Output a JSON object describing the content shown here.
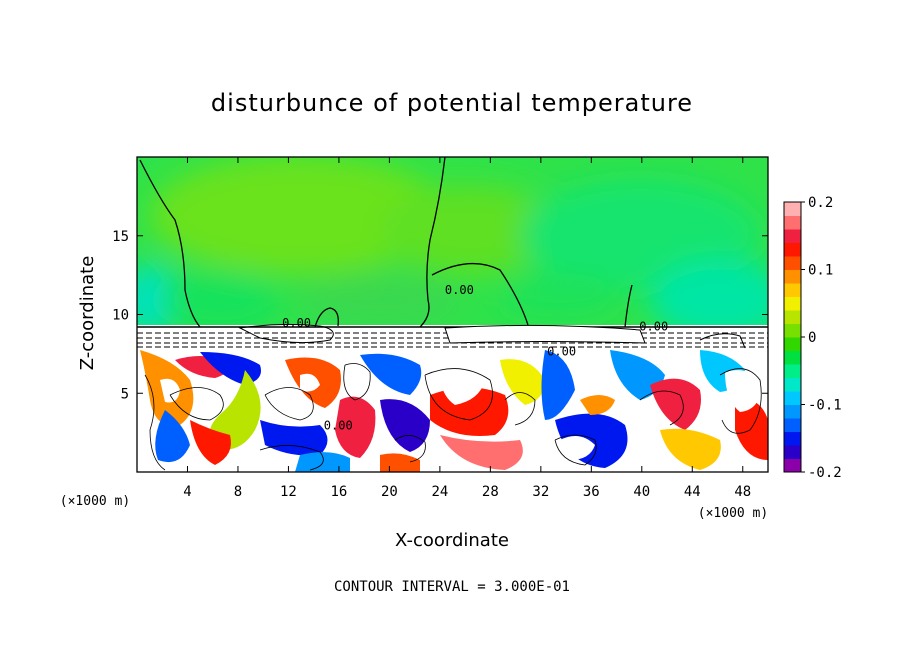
{
  "chart_data": {
    "type": "heatmap",
    "title": "disturbunce of potential temperature",
    "xlabel": "X-coordinate",
    "ylabel": "Z-coordinate",
    "x_unit_label": "(×1000 m)",
    "y_unit_label": "(×1000 m)",
    "xlim": [
      0,
      50
    ],
    "ylim": [
      0,
      20
    ],
    "x_ticks": [
      4,
      8,
      12,
      16,
      20,
      24,
      28,
      32,
      36,
      40,
      44,
      48
    ],
    "y_ticks": [
      5,
      10,
      15
    ],
    "contour_interval_text": "CONTOUR INTERVAL = 3.000E-01",
    "contour_labels": [
      {
        "text": "0.00",
        "x": 11.5,
        "z": 9.2
      },
      {
        "text": "0.00",
        "x": 24.4,
        "z": 11.3
      },
      {
        "text": "0.00",
        "x": 39.8,
        "z": 9.0
      },
      {
        "text": "0.00",
        "x": 32.5,
        "z": 7.4
      },
      {
        "text": "0.00",
        "x": 14.8,
        "z": 2.7
      }
    ],
    "colorbar": {
      "min": -0.2,
      "max": 0.2,
      "tick_values": [
        0.2,
        0.1,
        0,
        -0.1,
        -0.2
      ],
      "tick_labels": [
        "0.2",
        "0.1",
        "0",
        "-0.1",
        "-0.2"
      ],
      "levels": [
        {
          "color": "#8b00a8"
        },
        {
          "color": "#2a00c8"
        },
        {
          "color": "#0018f0"
        },
        {
          "color": "#0060ff"
        },
        {
          "color": "#0098ff"
        },
        {
          "color": "#00c8ff"
        },
        {
          "color": "#00e8c8"
        },
        {
          "color": "#00ee88"
        },
        {
          "color": "#00e040"
        },
        {
          "color": "#30d800"
        },
        {
          "color": "#78e000"
        },
        {
          "color": "#b8e400"
        },
        {
          "color": "#f0f000"
        },
        {
          "color": "#ffc800"
        },
        {
          "color": "#ff9000"
        },
        {
          "color": "#ff5000"
        },
        {
          "color": "#ff1800"
        },
        {
          "color": "#f02040"
        },
        {
          "color": "#ff6f6f"
        },
        {
          "color": "#ffb0b0"
        }
      ]
    }
  },
  "colors": {
    "upper_green": "#3fe23a",
    "upper_lightgreen": "#66e01c",
    "upper_teal": "#00e58a",
    "upper_cyan": "#00e4c4",
    "band_white": "#ffffff",
    "frame": "#000000"
  }
}
